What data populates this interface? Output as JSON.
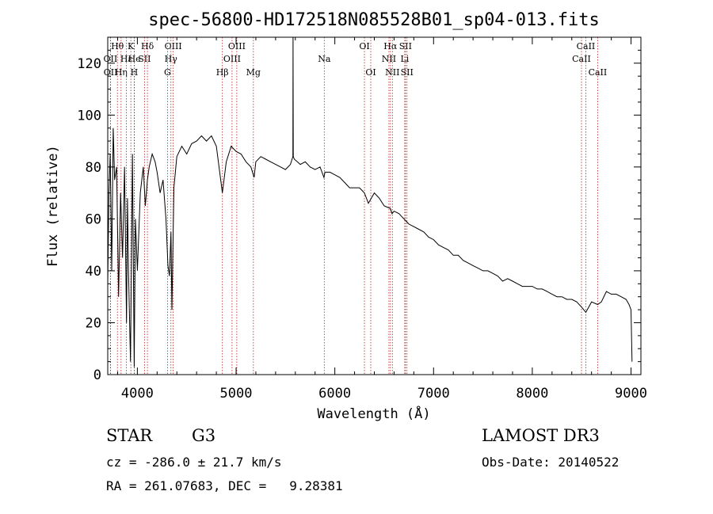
{
  "chart_data": {
    "type": "line",
    "title": "spec-56800-HD172518N085528B01_sp04-013.fits",
    "xlabel": "Wavelength (Å)",
    "ylabel": "Flux (relative)",
    "xlim": [
      3700,
      9100
    ],
    "ylim": [
      0,
      130
    ],
    "x_ticks": [
      4000,
      5000,
      6000,
      7000,
      8000,
      9000
    ],
    "y_ticks": [
      0,
      20,
      40,
      60,
      80,
      100,
      120
    ],
    "x_tick_labels": [
      "4000",
      "5000",
      "6000",
      "7000",
      "8000",
      "9000"
    ],
    "y_tick_labels": [
      "0",
      "20",
      "40",
      "60",
      "80",
      "100",
      "120"
    ],
    "grid": false,
    "series": [
      {
        "name": "spectrum",
        "x": [
          3700,
          3712,
          3725,
          3740,
          3755,
          3770,
          3790,
          3810,
          3830,
          3850,
          3870,
          3890,
          3900,
          3910,
          3930,
          3950,
          3968,
          3980,
          4000,
          4030,
          4060,
          4080,
          4102,
          4120,
          4150,
          4180,
          4200,
          4230,
          4260,
          4290,
          4310,
          4325,
          4340,
          4350,
          4370,
          4400,
          4450,
          4500,
          4550,
          4600,
          4650,
          4700,
          4750,
          4800,
          4861,
          4900,
          4950,
          5000,
          5050,
          5100,
          5150,
          5183,
          5200,
          5250,
          5300,
          5350,
          5400,
          5450,
          5500,
          5550,
          5575,
          5577,
          5579,
          5590,
          5620,
          5650,
          5700,
          5750,
          5800,
          5850,
          5890,
          5900,
          5950,
          6000,
          6050,
          6100,
          6150,
          6200,
          6250,
          6300,
          6340,
          6400,
          6450,
          6500,
          6563,
          6580,
          6600,
          6650,
          6700,
          6750,
          6800,
          6850,
          6900,
          6950,
          7000,
          7050,
          7100,
          7150,
          7200,
          7250,
          7300,
          7350,
          7400,
          7450,
          7500,
          7550,
          7600,
          7650,
          7700,
          7750,
          7800,
          7850,
          7900,
          7950,
          8000,
          8050,
          8100,
          8150,
          8200,
          8250,
          8300,
          8350,
          8400,
          8450,
          8500,
          8542,
          8600,
          8662,
          8700,
          8750,
          8800,
          8850,
          8900,
          8950,
          8980,
          9000,
          9010
        ],
        "values": [
          35,
          70,
          85,
          40,
          95,
          75,
          80,
          30,
          70,
          45,
          80,
          20,
          68,
          40,
          5,
          85,
          3,
          60,
          40,
          70,
          80,
          65,
          75,
          80,
          85,
          82,
          78,
          70,
          75,
          60,
          42,
          38,
          55,
          25,
          72,
          84,
          88,
          85,
          89,
          90,
          92,
          90,
          92,
          88,
          70,
          82,
          88,
          86,
          85,
          82,
          80,
          76,
          82,
          84,
          83,
          82,
          81,
          80,
          79,
          81,
          84,
          130,
          84,
          83,
          82,
          81,
          82,
          80,
          79,
          80,
          76,
          78,
          78,
          77,
          76,
          74,
          72,
          72,
          72,
          70,
          66,
          70,
          68,
          65,
          64,
          62,
          63,
          62,
          60,
          58,
          57,
          56,
          55,
          53,
          52,
          50,
          49,
          48,
          46,
          46,
          44,
          43,
          42,
          41,
          40,
          40,
          39,
          38,
          36,
          37,
          36,
          35,
          34,
          34,
          34,
          33,
          33,
          32,
          31,
          30,
          30,
          29,
          29,
          28,
          26,
          24,
          28,
          27,
          28,
          32,
          31,
          31,
          30,
          29,
          27,
          25,
          5
        ]
      }
    ],
    "line_markers": [
      {
        "label": "Hθ",
        "x": 3798,
        "row": 1
      },
      {
        "label": "OII",
        "x": 3727,
        "row": 2
      },
      {
        "label": "OII",
        "x": 3729,
        "row": 3
      },
      {
        "label": "Hη",
        "x": 3835,
        "row": 3
      },
      {
        "label": "Hε",
        "x": 3889,
        "row": 2
      },
      {
        "label": "K",
        "x": 3934,
        "row": 1
      },
      {
        "label": "He",
        "x": 3970,
        "row": 2
      },
      {
        "label": "H",
        "x": 3968,
        "row": 3
      },
      {
        "label": "SII",
        "x": 4072,
        "row": 2
      },
      {
        "label": "Hδ",
        "x": 4102,
        "row": 1
      },
      {
        "label": "OIII",
        "x": 4363,
        "row": 1
      },
      {
        "label": "Hγ",
        "x": 4340,
        "row": 2
      },
      {
        "label": "G",
        "x": 4305,
        "row": 3
      },
      {
        "label": "Hβ",
        "x": 4861,
        "row": 3
      },
      {
        "label": "OIII",
        "x": 5007,
        "row": 1
      },
      {
        "label": "OIII",
        "x": 4959,
        "row": 2
      },
      {
        "label": "Mg",
        "x": 5175,
        "row": 3
      },
      {
        "label": "Na",
        "x": 5893,
        "row": 2
      },
      {
        "label": "OI",
        "x": 6300,
        "row": 1
      },
      {
        "label": "OI",
        "x": 6364,
        "row": 3
      },
      {
        "label": "Hα",
        "x": 6563,
        "row": 1
      },
      {
        "label": "NII",
        "x": 6548,
        "row": 2
      },
      {
        "label": "NII",
        "x": 6583,
        "row": 3
      },
      {
        "label": "SII",
        "x": 6716,
        "row": 1
      },
      {
        "label": "Li",
        "x": 6708,
        "row": 2
      },
      {
        "label": "SII",
        "x": 6731,
        "row": 3
      },
      {
        "label": "CaII",
        "x": 8542,
        "row": 1
      },
      {
        "label": "CaII",
        "x": 8498,
        "row": 2
      },
      {
        "label": "CaII",
        "x": 8662,
        "row": 3
      }
    ],
    "colors": {
      "spectrum": "#000000",
      "markers": "#b22222",
      "axes": "#000000"
    }
  },
  "info": {
    "object_class": "STAR",
    "subclass": "G3",
    "survey": "LAMOST DR3",
    "redshift_text": "cz = -286.0 ± 21.7 km/s",
    "obs_date_text": "Obs-Date: 20140522",
    "coords_text": "RA = 261.07683, DEC =   9.28381"
  }
}
